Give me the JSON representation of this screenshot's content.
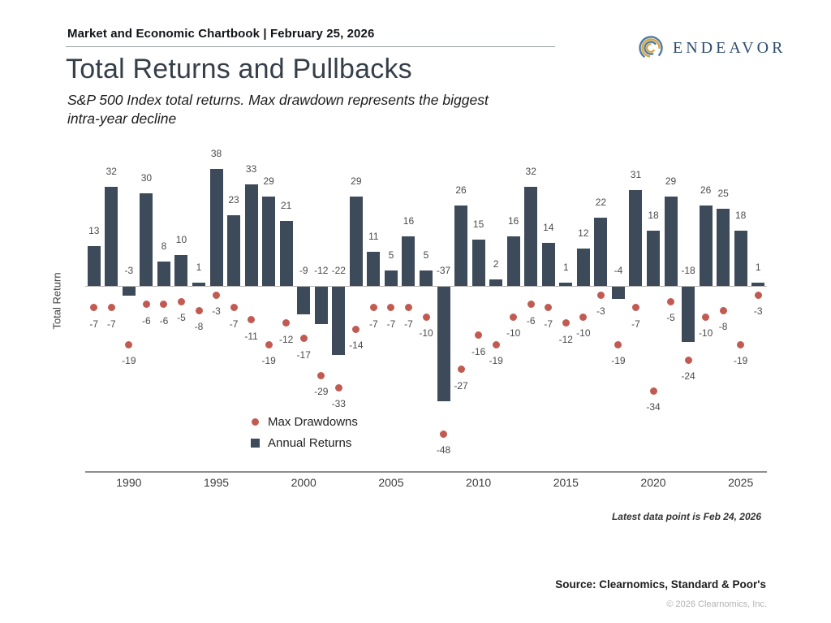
{
  "header": {
    "label": "Market and Economic Chartbook | February 25, 2026"
  },
  "logo": {
    "name": "ENDEAVOR"
  },
  "page": {
    "title": "Total Returns and Pullbacks",
    "subtitle": "S&P 500 Index total returns. Max drawdown represents the biggest intra-year decline"
  },
  "chart_data": {
    "type": "bar",
    "title": "Total Returns and Pullbacks",
    "ylabel": "Total Return",
    "x": [
      1988,
      1989,
      1990,
      1991,
      1992,
      1993,
      1994,
      1995,
      1996,
      1997,
      1998,
      1999,
      2000,
      2001,
      2002,
      2003,
      2004,
      2005,
      2006,
      2007,
      2008,
      2009,
      2010,
      2011,
      2012,
      2013,
      2014,
      2015,
      2016,
      2017,
      2018,
      2019,
      2020,
      2021,
      2022,
      2023,
      2024,
      2025,
      2026
    ],
    "x_ticks": [
      "1990",
      "1995",
      "2000",
      "2005",
      "2010",
      "2015",
      "2020",
      "2025"
    ],
    "series": [
      {
        "name": "Annual Returns",
        "type": "bar",
        "color": "#3d4a5a",
        "values": [
          13,
          32,
          -3,
          30,
          8,
          10,
          1,
          38,
          23,
          33,
          29,
          21,
          -9,
          -12,
          -22,
          29,
          11,
          5,
          16,
          5,
          -37,
          26,
          15,
          2,
          16,
          32,
          14,
          1,
          12,
          22,
          -4,
          31,
          18,
          29,
          -18,
          26,
          25,
          18,
          1
        ]
      },
      {
        "name": "Max Drawdowns",
        "type": "scatter",
        "color": "#c15b52",
        "values": [
          -7,
          -7,
          -19,
          -6,
          -6,
          -5,
          -8,
          -3,
          -7,
          -11,
          -19,
          -12,
          -17,
          -29,
          -33,
          -14,
          -7,
          -7,
          -7,
          -10,
          -48,
          -27,
          -16,
          -19,
          -10,
          -6,
          -7,
          -12,
          -10,
          -3,
          -19,
          -7,
          -34,
          -5,
          -24,
          -10,
          -8,
          -19,
          -3
        ]
      }
    ],
    "ylim": [
      -60,
      45
    ],
    "grid": false,
    "legend_position": "bottom-center-inside",
    "data_labels": true
  },
  "notes": {
    "latest": "Latest data point is Feb 24, 2026",
    "source": "Source: Clearnomics, Standard & Poor's",
    "copyright": "© 2026 Clearnomics, Inc."
  }
}
